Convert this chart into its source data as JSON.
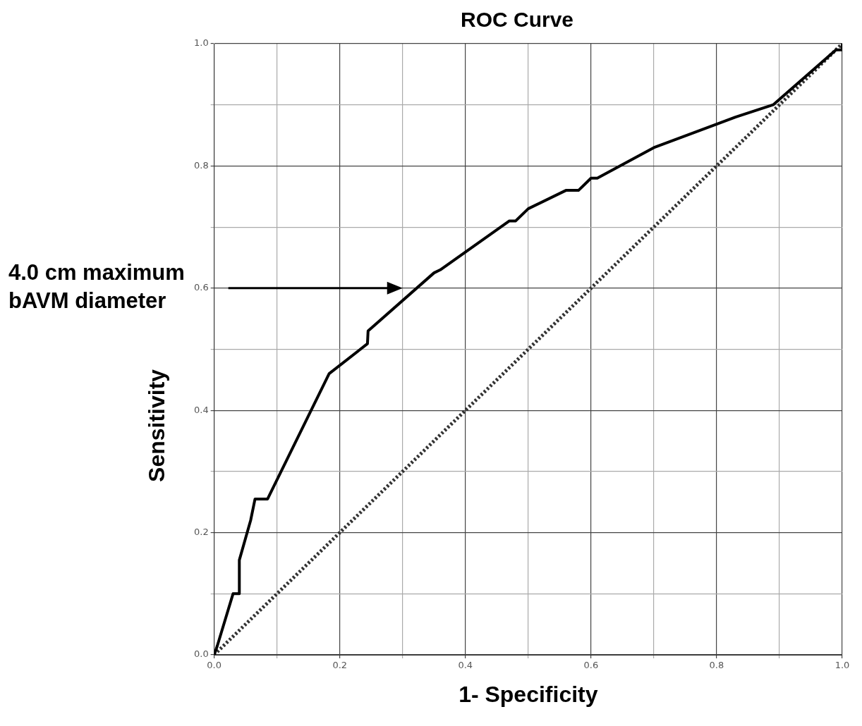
{
  "chart_data": {
    "type": "line",
    "title": "ROC Curve",
    "xlabel": "1- Specificity",
    "ylabel": "Sensitivity",
    "series": [
      {
        "color": "#000000",
        "line_style": "solid",
        "x": [
          0,
          0.005,
          0.03,
          0.04,
          0.04,
          0.058,
          0.065,
          0.085,
          0.183,
          0.244,
          0.245,
          0.35,
          0.36,
          0.47,
          0.48,
          0.5,
          0.56,
          0.58,
          0.6,
          0.61,
          0.7,
          0.83,
          0.89,
          0.99,
          1.0,
          1.0
        ],
        "values": [
          0,
          0.015,
          0.1,
          0.1,
          0.155,
          0.22,
          0.255,
          0.255,
          0.46,
          0.509,
          0.53,
          0.625,
          0.63,
          0.71,
          0.71,
          0.73,
          0.76,
          0.76,
          0.78,
          0.78,
          0.83,
          0.88,
          0.9,
          0.99,
          0.99,
          1.0
        ]
      },
      {
        "color": "#333333",
        "line_style": "dotted",
        "x": [
          0,
          1
        ],
        "values": [
          0,
          1
        ]
      }
    ],
    "xlim": [
      0,
      1
    ],
    "ylim": [
      0,
      1
    ],
    "xticks": [
      {
        "value": 0,
        "label": "0.0"
      },
      {
        "value": 0.1,
        "label": null
      },
      {
        "value": 0.2,
        "label": "0.2"
      },
      {
        "value": 0.3,
        "label": null
      },
      {
        "value": 0.4,
        "label": "0.4"
      },
      {
        "value": 0.5,
        "label": null
      },
      {
        "value": 0.6,
        "label": "0.6"
      },
      {
        "value": 0.7,
        "label": null
      },
      {
        "value": 0.8,
        "label": "0.8"
      },
      {
        "value": 0.9,
        "label": null
      },
      {
        "value": 1,
        "label": "1.0"
      }
    ],
    "yticks": [
      {
        "value": 0,
        "label": "0.0"
      },
      {
        "value": 0.1,
        "label": null
      },
      {
        "value": 0.2,
        "label": "0.2"
      },
      {
        "value": 0.3,
        "label": null
      },
      {
        "value": 0.4,
        "label": "0.4"
      },
      {
        "value": 0.5,
        "label": null
      },
      {
        "value": 0.6,
        "label": "0.6"
      },
      {
        "value": 0.7,
        "label": null
      },
      {
        "value": 0.8,
        "label": "0.8"
      },
      {
        "value": 0.9,
        "label": null
      },
      {
        "value": 1,
        "label": "1.0"
      }
    ],
    "grid": true,
    "legend": false,
    "marker": "none",
    "annotations": [
      "4.0 cm maximum\nbAVM diameter"
    ]
  }
}
